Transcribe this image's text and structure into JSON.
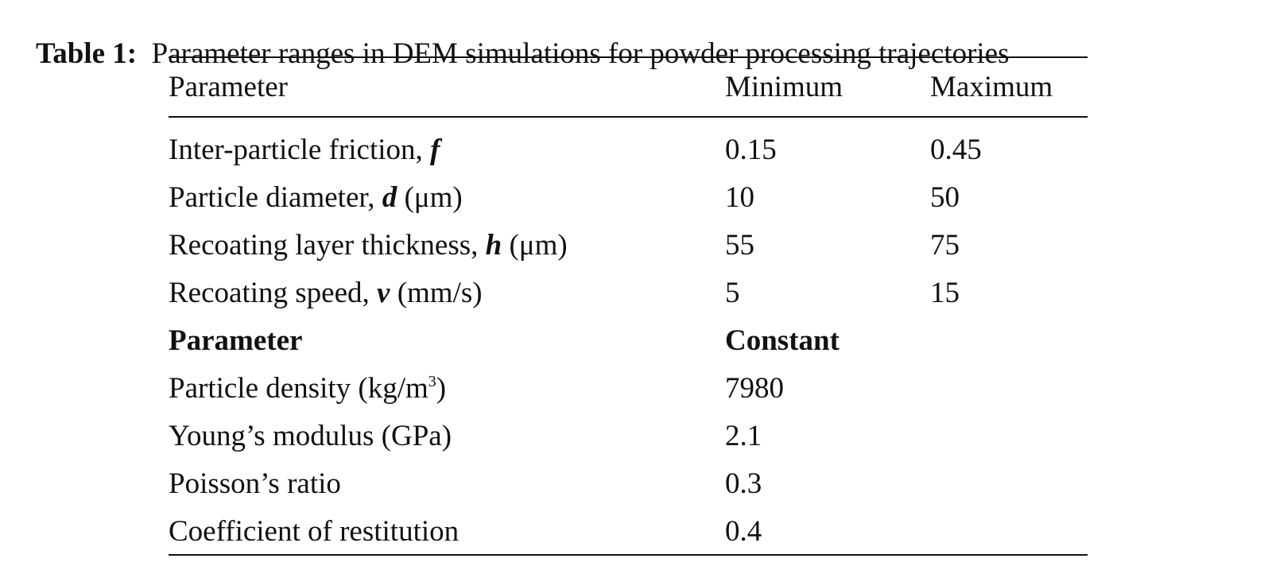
{
  "title": {
    "label": "Table 1:",
    "text": "Parameter ranges in DEM simulations for powder processing trajectories"
  },
  "table": {
    "header": [
      "Parameter",
      "Minimum",
      "Maximum"
    ],
    "rows": [
      {
        "parameter": [
          {
            "text": "Inter-particle friction, "
          },
          {
            "text": "f",
            "style": "bold-italic"
          }
        ],
        "minimum": 0.15,
        "maximum": 0.45
      },
      {
        "parameter": [
          {
            "text": "Particle diameter, "
          },
          {
            "text": "d",
            "style": "bold-italic"
          },
          {
            "text": " (μm)"
          }
        ],
        "minimum": 10,
        "maximum": 50
      },
      {
        "parameter": [
          {
            "text": "Recoating layer thickness, "
          },
          {
            "text": "h",
            "style": "bold-italic"
          },
          {
            "text": " (μm)"
          }
        ],
        "minimum": 55,
        "maximum": 75
      },
      {
        "parameter": [
          {
            "text": "Recoating speed, "
          },
          {
            "text": "v",
            "style": "bold-italic"
          },
          {
            "text": " (mm/s)"
          }
        ],
        "minimum": 5,
        "maximum": 15
      }
    ],
    "constants_header": [
      "Parameter",
      "Constant"
    ],
    "constants": [
      {
        "parameter": [
          {
            "text": "Particle density (kg/m"
          },
          {
            "text": "3",
            "style": "superscript"
          },
          {
            "text": ")"
          }
        ],
        "value": 7980
      },
      {
        "parameter": [
          {
            "text": "Young’s modulus (GPa)"
          }
        ],
        "value": 2.1
      },
      {
        "parameter": [
          {
            "text": "Poisson’s ratio"
          }
        ],
        "value": 0.3
      },
      {
        "parameter": [
          {
            "text": "Coefficient of restitution"
          }
        ],
        "value": 0.4
      }
    ]
  }
}
